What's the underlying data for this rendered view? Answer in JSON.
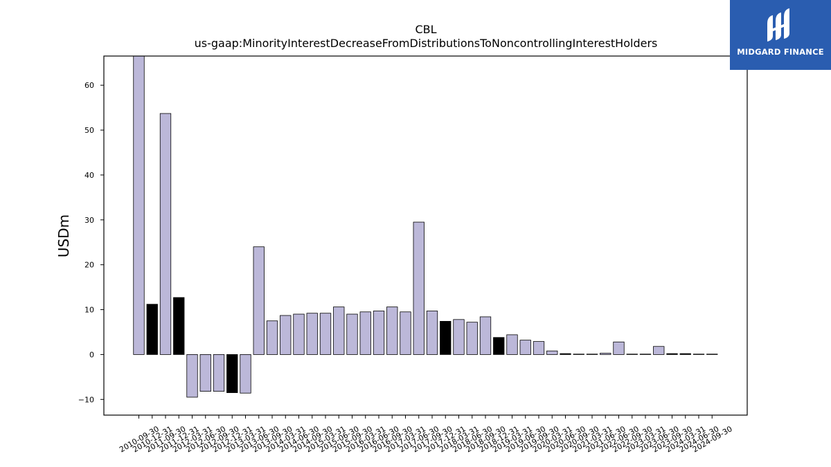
{
  "chart_data": {
    "type": "bar",
    "title": "CBL",
    "subtitle": "us-gaap:MinorityInterestDecreaseFromDistributionsToNoncontrollingInterestHolders",
    "ylabel": "USDm",
    "xlabel": "",
    "ylim": [
      -13.5,
      66.5
    ],
    "yticks": [
      -10,
      0,
      10,
      20,
      30,
      40,
      50,
      60
    ],
    "grid": false,
    "categories": [
      "2010-09-30",
      "2010-12-31",
      "2011-09-30",
      "2011-12-31",
      "2012-03-31",
      "2012-06-30",
      "2012-09-30",
      "2012-12-31",
      "2013-03-31",
      "2013-06-30",
      "2013-09-30",
      "2014-03-31",
      "2014-06-30",
      "2014-09-30",
      "2015-03-31",
      "2015-06-30",
      "2015-09-30",
      "2016-03-31",
      "2016-06-30",
      "2016-09-30",
      "2017-03-31",
      "2017-06-30",
      "2017-09-30",
      "2017-12-31",
      "2018-03-31",
      "2018-06-30",
      "2018-09-30",
      "2018-12-31",
      "2019-03-31",
      "2019-06-30",
      "2019-09-30",
      "2020-03-31",
      "2020-06-30",
      "2020-09-30",
      "2021-03-31",
      "2021-06-30",
      "2022-06-30",
      "2022-09-30",
      "2023-03-31",
      "2023-06-30",
      "2023-09-30",
      "2024-03-31",
      "2024-06-30",
      "2024-09-30"
    ],
    "values": [
      66.5,
      11.2,
      53.7,
      12.7,
      -9.5,
      -8.2,
      -8.2,
      -8.5,
      -8.6,
      24.0,
      7.5,
      8.7,
      9.0,
      9.2,
      9.2,
      10.6,
      9.0,
      9.5,
      9.7,
      10.6,
      9.5,
      29.5,
      9.7,
      7.4,
      7.8,
      7.2,
      8.4,
      3.8,
      4.4,
      3.2,
      2.9,
      0.8,
      0.2,
      0.1,
      0.1,
      0.3,
      2.8,
      0.1,
      0.1,
      1.8,
      0.2,
      0.2,
      0.1,
      0.1
    ],
    "highlight": [
      false,
      true,
      false,
      true,
      false,
      false,
      false,
      true,
      false,
      false,
      false,
      false,
      false,
      false,
      false,
      false,
      false,
      false,
      false,
      false,
      false,
      false,
      false,
      true,
      false,
      false,
      false,
      true,
      false,
      false,
      false,
      false,
      true,
      false,
      false,
      false,
      false,
      false,
      false,
      false,
      true,
      true,
      false,
      false
    ],
    "colors": {
      "bar": "#bcb8d9",
      "highlight": "#000000",
      "edge": "#000000"
    }
  },
  "logo": {
    "text": "MIDGARD FINANCE",
    "background": "#2a5db0"
  }
}
